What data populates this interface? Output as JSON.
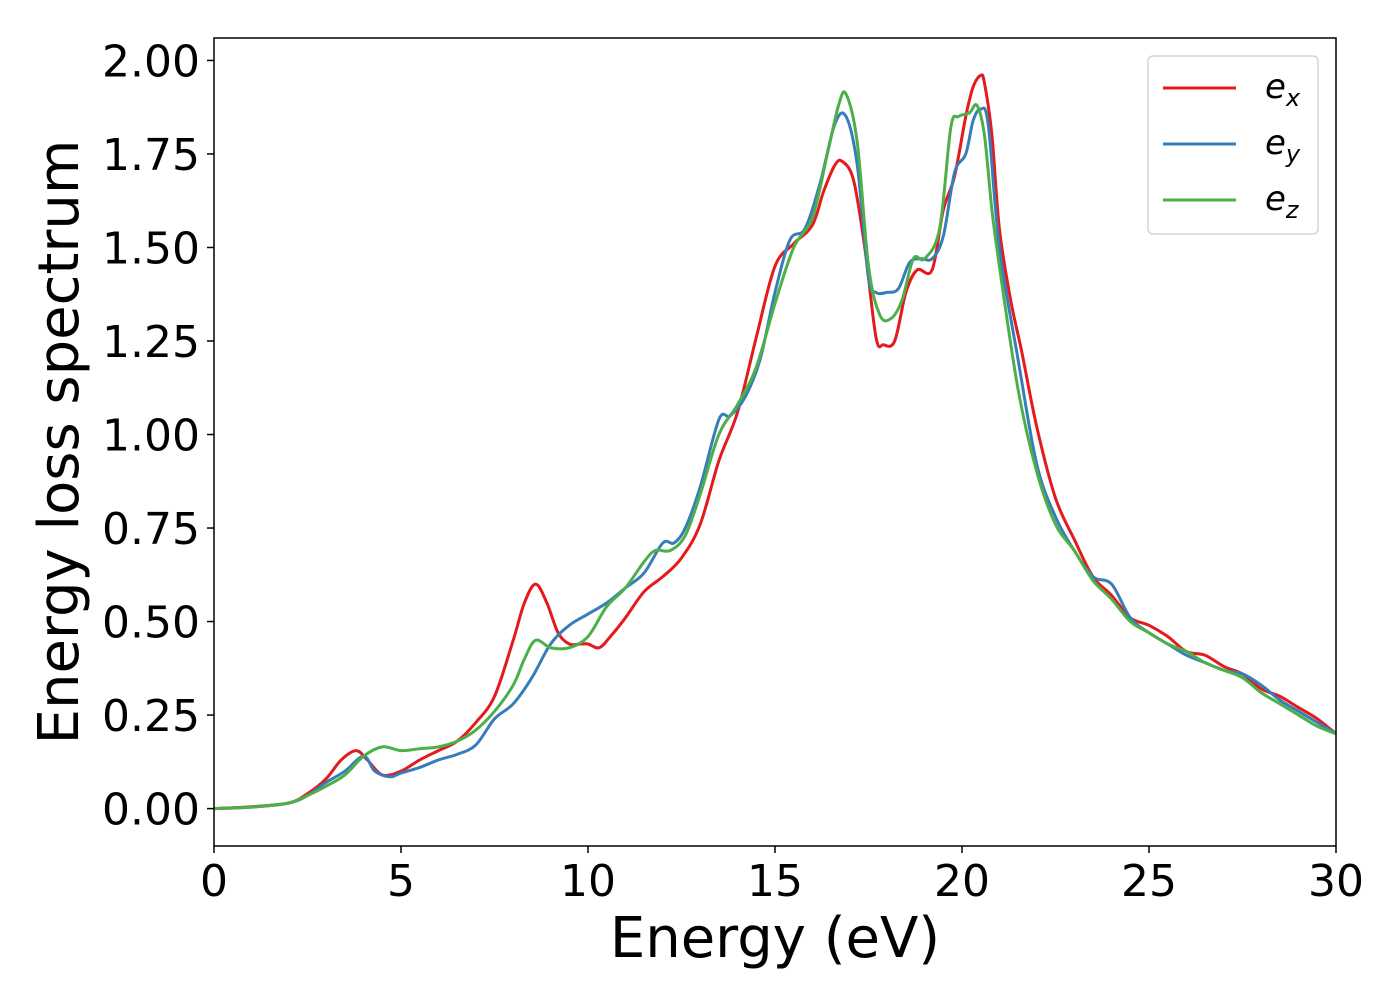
{
  "chart_data": {
    "type": "line",
    "title": "",
    "xlabel": "Energy (eV)",
    "ylabel": "Energy loss spectrum",
    "xlim": [
      0,
      30
    ],
    "ylim": [
      -0.1,
      2.06
    ],
    "xticks": [
      0,
      5,
      10,
      15,
      20,
      25,
      30
    ],
    "yticks": [
      0.0,
      0.25,
      0.5,
      0.75,
      1.0,
      1.25,
      1.5,
      1.75,
      2.0
    ],
    "xtick_labels": [
      "0",
      "5",
      "10",
      "15",
      "20",
      "25",
      "30"
    ],
    "ytick_labels": [
      "0.00",
      "0.25",
      "0.50",
      "0.75",
      "1.00",
      "1.25",
      "1.50",
      "1.75",
      "2.00"
    ],
    "grid": false,
    "legend_position": "top-right",
    "series": [
      {
        "name": "e_x",
        "legend_base": "e",
        "legend_sub": "x",
        "color": "#e41a1c",
        "x": [
          0,
          1,
          2,
          2.5,
          3,
          3.4,
          3.8,
          4.1,
          4.5,
          5,
          5.5,
          6,
          6.5,
          7,
          7.5,
          8,
          8.3,
          8.6,
          8.9,
          9.2,
          9.5,
          9.8,
          10,
          10.3,
          10.6,
          11,
          11.5,
          12,
          12.5,
          13,
          13.5,
          14,
          14.5,
          15,
          15.5,
          16,
          16.3,
          16.6,
          16.8,
          17.1,
          17.4,
          17.7,
          17.9,
          18.2,
          18.5,
          18.8,
          19.2,
          19.5,
          19.8,
          20.1,
          20.3,
          20.5,
          20.6,
          20.8,
          21,
          21.3,
          21.6,
          22,
          22.5,
          23,
          23.5,
          24,
          24.5,
          25,
          25.5,
          26,
          26.5,
          27,
          27.5,
          28,
          28.5,
          29,
          29.5,
          30
        ],
        "y": [
          0.0,
          0.005,
          0.015,
          0.04,
          0.08,
          0.13,
          0.155,
          0.13,
          0.09,
          0.1,
          0.13,
          0.155,
          0.18,
          0.23,
          0.3,
          0.45,
          0.55,
          0.6,
          0.55,
          0.47,
          0.44,
          0.44,
          0.44,
          0.43,
          0.46,
          0.51,
          0.58,
          0.62,
          0.67,
          0.76,
          0.93,
          1.06,
          1.26,
          1.45,
          1.51,
          1.56,
          1.65,
          1.72,
          1.73,
          1.68,
          1.5,
          1.26,
          1.24,
          1.25,
          1.38,
          1.44,
          1.44,
          1.6,
          1.69,
          1.85,
          1.93,
          1.96,
          1.94,
          1.8,
          1.55,
          1.36,
          1.22,
          1.02,
          0.83,
          0.72,
          0.62,
          0.57,
          0.51,
          0.49,
          0.46,
          0.42,
          0.41,
          0.38,
          0.36,
          0.32,
          0.3,
          0.27,
          0.24,
          0.2
        ]
      },
      {
        "name": "e_y",
        "legend_base": "e",
        "legend_sub": "y",
        "color": "#377eb8",
        "x": [
          0,
          1,
          2,
          2.5,
          3,
          3.5,
          4,
          4.3,
          4.7,
          5,
          5.5,
          6,
          6.5,
          7,
          7.5,
          8,
          8.5,
          9,
          9.5,
          10,
          10.5,
          11,
          11.5,
          12,
          12.3,
          12.6,
          13,
          13.5,
          13.8,
          14.2,
          14.6,
          15,
          15.4,
          15.8,
          16.2,
          16.6,
          16.9,
          17.2,
          17.5,
          17.7,
          18,
          18.3,
          18.6,
          18.9,
          19.2,
          19.5,
          19.8,
          20.1,
          20.3,
          20.5,
          20.7,
          21,
          21.5,
          22,
          22.5,
          23,
          23.5,
          24,
          24.5,
          25,
          25.5,
          26,
          26.5,
          27,
          27.5,
          28,
          28.5,
          29,
          29.5,
          30
        ],
        "y": [
          0.0,
          0.004,
          0.015,
          0.035,
          0.07,
          0.1,
          0.14,
          0.1,
          0.085,
          0.095,
          0.11,
          0.13,
          0.145,
          0.17,
          0.24,
          0.28,
          0.35,
          0.44,
          0.49,
          0.52,
          0.55,
          0.59,
          0.63,
          0.71,
          0.71,
          0.75,
          0.86,
          1.04,
          1.05,
          1.1,
          1.2,
          1.38,
          1.52,
          1.55,
          1.67,
          1.83,
          1.85,
          1.72,
          1.42,
          1.38,
          1.38,
          1.39,
          1.46,
          1.47,
          1.47,
          1.53,
          1.7,
          1.75,
          1.84,
          1.87,
          1.83,
          1.5,
          1.2,
          0.92,
          0.78,
          0.69,
          0.62,
          0.6,
          0.51,
          0.47,
          0.44,
          0.41,
          0.39,
          0.37,
          0.36,
          0.33,
          0.29,
          0.26,
          0.23,
          0.2
        ]
      },
      {
        "name": "e_z",
        "legend_base": "e",
        "legend_sub": "z",
        "color": "#4daf4a",
        "x": [
          0,
          1,
          2,
          2.5,
          3,
          3.5,
          4,
          4.5,
          5,
          5.5,
          6,
          6.5,
          7,
          7.5,
          8,
          8.3,
          8.6,
          9,
          9.5,
          10,
          10.5,
          11,
          11.5,
          11.8,
          12.2,
          12.6,
          13,
          13.5,
          14,
          14.5,
          15,
          15.5,
          16,
          16.4,
          16.7,
          16.9,
          17.2,
          17.5,
          17.8,
          18.1,
          18.4,
          18.7,
          19,
          19.4,
          19.7,
          19.9,
          20.2,
          20.4,
          20.6,
          20.8,
          21,
          21.5,
          22,
          22.5,
          23,
          23.5,
          24,
          24.5,
          25,
          25.5,
          26,
          26.5,
          27,
          27.5,
          28,
          28.5,
          29,
          29.5,
          30
        ],
        "y": [
          0.0,
          0.004,
          0.015,
          0.035,
          0.06,
          0.09,
          0.14,
          0.165,
          0.155,
          0.16,
          0.165,
          0.18,
          0.21,
          0.26,
          0.33,
          0.4,
          0.45,
          0.43,
          0.43,
          0.46,
          0.54,
          0.59,
          0.66,
          0.69,
          0.69,
          0.73,
          0.84,
          1.0,
          1.08,
          1.18,
          1.35,
          1.5,
          1.58,
          1.75,
          1.88,
          1.91,
          1.78,
          1.45,
          1.32,
          1.31,
          1.36,
          1.47,
          1.47,
          1.55,
          1.82,
          1.85,
          1.86,
          1.88,
          1.8,
          1.6,
          1.45,
          1.12,
          0.9,
          0.76,
          0.69,
          0.61,
          0.56,
          0.5,
          0.47,
          0.44,
          0.42,
          0.39,
          0.37,
          0.35,
          0.31,
          0.28,
          0.25,
          0.22,
          0.2
        ]
      }
    ]
  }
}
